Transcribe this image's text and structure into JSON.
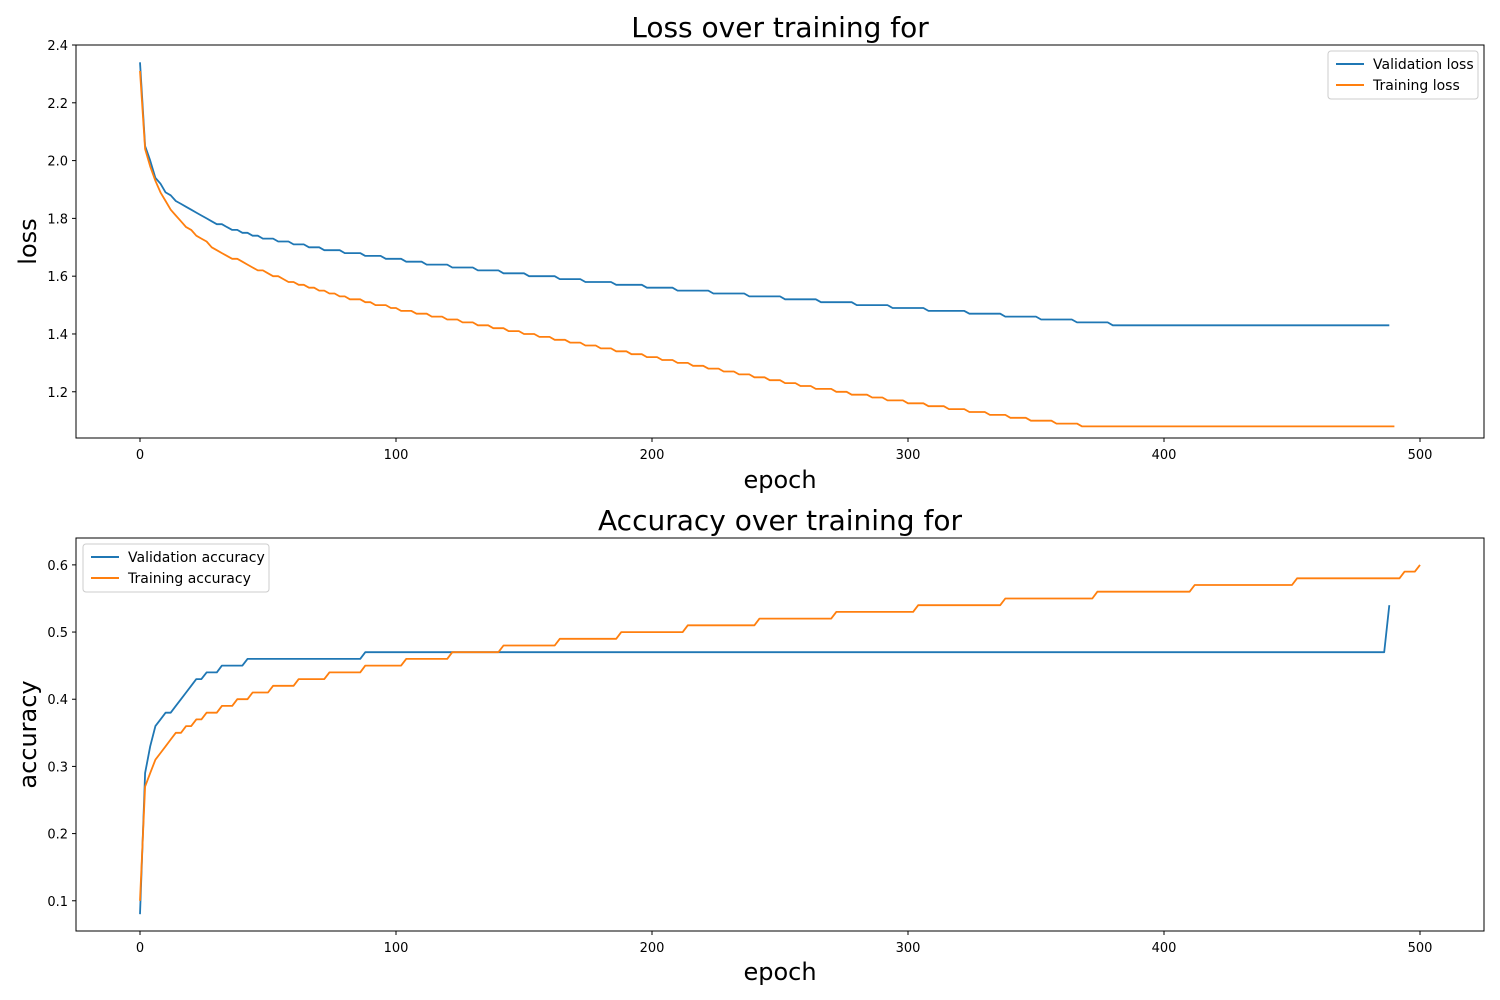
{
  "chart_data": [
    {
      "type": "line",
      "title": "Loss over training for",
      "xlabel": "epoch",
      "ylabel": "loss",
      "xlim": [
        -25,
        525
      ],
      "ylim": [
        1.04,
        2.4
      ],
      "xticks": [
        0,
        100,
        200,
        300,
        400,
        500
      ],
      "yticks": [
        1.2,
        1.4,
        1.6,
        1.8,
        2.0,
        2.2,
        2.4
      ],
      "ytick_labels": [
        "1.2",
        "1.4",
        "1.6",
        "1.8",
        "2.0",
        "2.2",
        "2.4"
      ],
      "legend": "top-right",
      "grid": false,
      "x_start": 0,
      "x_step": 2,
      "series": [
        {
          "name": "Validation loss",
          "color": "#1f77b4",
          "values": [
            2.34,
            2.05,
            2.0,
            1.94,
            1.92,
            1.89,
            1.88,
            1.86,
            1.85,
            1.84,
            1.83,
            1.82,
            1.81,
            1.8,
            1.79,
            1.78,
            1.78,
            1.77,
            1.76,
            1.76,
            1.75,
            1.75,
            1.74,
            1.74,
            1.73,
            1.73,
            1.73,
            1.72,
            1.72,
            1.72,
            1.71,
            1.71,
            1.71,
            1.7,
            1.7,
            1.7,
            1.69,
            1.69,
            1.69,
            1.69,
            1.68,
            1.68,
            1.68,
            1.68,
            1.67,
            1.67,
            1.67,
            1.67,
            1.66,
            1.66,
            1.66,
            1.66,
            1.65,
            1.65,
            1.65,
            1.65,
            1.64,
            1.64,
            1.64,
            1.64,
            1.64,
            1.63,
            1.63,
            1.63,
            1.63,
            1.63,
            1.62,
            1.62,
            1.62,
            1.62,
            1.62,
            1.61,
            1.61,
            1.61,
            1.61,
            1.61,
            1.6,
            1.6,
            1.6,
            1.6,
            1.6,
            1.6,
            1.59,
            1.59,
            1.59,
            1.59,
            1.59,
            1.58,
            1.58,
            1.58,
            1.58,
            1.58,
            1.58,
            1.57,
            1.57,
            1.57,
            1.57,
            1.57,
            1.57,
            1.56,
            1.56,
            1.56,
            1.56,
            1.56,
            1.56,
            1.55,
            1.55,
            1.55,
            1.55,
            1.55,
            1.55,
            1.55,
            1.54,
            1.54,
            1.54,
            1.54,
            1.54,
            1.54,
            1.54,
            1.53,
            1.53,
            1.53,
            1.53,
            1.53,
            1.53,
            1.53,
            1.52,
            1.52,
            1.52,
            1.52,
            1.52,
            1.52,
            1.52,
            1.51,
            1.51,
            1.51,
            1.51,
            1.51,
            1.51,
            1.51,
            1.5,
            1.5,
            1.5,
            1.5,
            1.5,
            1.5,
            1.5,
            1.49,
            1.49,
            1.49,
            1.49,
            1.49,
            1.49,
            1.49,
            1.48,
            1.48,
            1.48,
            1.48,
            1.48,
            1.48,
            1.48,
            1.48,
            1.47,
            1.47,
            1.47,
            1.47,
            1.47,
            1.47,
            1.47,
            1.46,
            1.46,
            1.46,
            1.46,
            1.46,
            1.46,
            1.46,
            1.45,
            1.45,
            1.45,
            1.45,
            1.45,
            1.45,
            1.45,
            1.44,
            1.44,
            1.44,
            1.44,
            1.44,
            1.44,
            1.44,
            1.43,
            1.43,
            1.43,
            1.43,
            1.43,
            1.43,
            1.43,
            1.43,
            1.43,
            1.43,
            1.43,
            1.43,
            1.43,
            1.43,
            1.43,
            1.43,
            1.43,
            1.43,
            1.43,
            1.43,
            1.43,
            1.43,
            1.43,
            1.43,
            1.43,
            1.43,
            1.43,
            1.43,
            1.43,
            1.43,
            1.43,
            1.43,
            1.43,
            1.43,
            1.43,
            1.43,
            1.43,
            1.43,
            1.43,
            1.43,
            1.43,
            1.43,
            1.43,
            1.43,
            1.43,
            1.43,
            1.43,
            1.43,
            1.43,
            1.43,
            1.43,
            1.43,
            1.43,
            1.43,
            1.43
          ]
        },
        {
          "name": "Training loss",
          "color": "#ff7f0e",
          "values": [
            2.31,
            2.04,
            1.98,
            1.93,
            1.89,
            1.86,
            1.83,
            1.81,
            1.79,
            1.77,
            1.76,
            1.74,
            1.73,
            1.72,
            1.7,
            1.69,
            1.68,
            1.67,
            1.66,
            1.66,
            1.65,
            1.64,
            1.63,
            1.62,
            1.62,
            1.61,
            1.6,
            1.6,
            1.59,
            1.58,
            1.58,
            1.57,
            1.57,
            1.56,
            1.56,
            1.55,
            1.55,
            1.54,
            1.54,
            1.53,
            1.53,
            1.52,
            1.52,
            1.52,
            1.51,
            1.51,
            1.5,
            1.5,
            1.5,
            1.49,
            1.49,
            1.48,
            1.48,
            1.48,
            1.47,
            1.47,
            1.47,
            1.46,
            1.46,
            1.46,
            1.45,
            1.45,
            1.45,
            1.44,
            1.44,
            1.44,
            1.43,
            1.43,
            1.43,
            1.42,
            1.42,
            1.42,
            1.41,
            1.41,
            1.41,
            1.4,
            1.4,
            1.4,
            1.39,
            1.39,
            1.39,
            1.38,
            1.38,
            1.38,
            1.37,
            1.37,
            1.37,
            1.36,
            1.36,
            1.36,
            1.35,
            1.35,
            1.35,
            1.34,
            1.34,
            1.34,
            1.33,
            1.33,
            1.33,
            1.32,
            1.32,
            1.32,
            1.31,
            1.31,
            1.31,
            1.3,
            1.3,
            1.3,
            1.29,
            1.29,
            1.29,
            1.28,
            1.28,
            1.28,
            1.27,
            1.27,
            1.27,
            1.26,
            1.26,
            1.26,
            1.25,
            1.25,
            1.25,
            1.24,
            1.24,
            1.24,
            1.23,
            1.23,
            1.23,
            1.22,
            1.22,
            1.22,
            1.21,
            1.21,
            1.21,
            1.21,
            1.2,
            1.2,
            1.2,
            1.19,
            1.19,
            1.19,
            1.19,
            1.18,
            1.18,
            1.18,
            1.17,
            1.17,
            1.17,
            1.17,
            1.16,
            1.16,
            1.16,
            1.16,
            1.15,
            1.15,
            1.15,
            1.15,
            1.14,
            1.14,
            1.14,
            1.14,
            1.13,
            1.13,
            1.13,
            1.13,
            1.12,
            1.12,
            1.12,
            1.12,
            1.11,
            1.11,
            1.11,
            1.11,
            1.1,
            1.1,
            1.1,
            1.1,
            1.1,
            1.09,
            1.09,
            1.09,
            1.09,
            1.09,
            1.08,
            1.08,
            1.08,
            1.08,
            1.08,
            1.08,
            1.08,
            1.08,
            1.08,
            1.08,
            1.08,
            1.08,
            1.08,
            1.08,
            1.08,
            1.08,
            1.08,
            1.08,
            1.08,
            1.08,
            1.08,
            1.08,
            1.08,
            1.08,
            1.08,
            1.08,
            1.08,
            1.08,
            1.08,
            1.08,
            1.08,
            1.08,
            1.08,
            1.08,
            1.08,
            1.08,
            1.08,
            1.08,
            1.08,
            1.08,
            1.08,
            1.08,
            1.08,
            1.08,
            1.08,
            1.08,
            1.08,
            1.08,
            1.08,
            1.08,
            1.08,
            1.08,
            1.08,
            1.08,
            1.08,
            1.08,
            1.08,
            1.08,
            1.08,
            1.08,
            1.08,
            1.08
          ]
        }
      ]
    },
    {
      "type": "line",
      "title": "Accuracy over training for",
      "xlabel": "epoch",
      "ylabel": "accuracy",
      "xlim": [
        -25,
        525
      ],
      "ylim": [
        0.055,
        0.64
      ],
      "xticks": [
        0,
        100,
        200,
        300,
        400,
        500
      ],
      "yticks": [
        0.1,
        0.2,
        0.3,
        0.4,
        0.5,
        0.6
      ],
      "ytick_labels": [
        "0.1",
        "0.2",
        "0.3",
        "0.4",
        "0.5",
        "0.6"
      ],
      "legend": "top-left",
      "grid": false,
      "x_start": 0,
      "x_step": 2,
      "series": [
        {
          "name": "Validation accuracy",
          "color": "#1f77b4",
          "values": [
            0.08,
            0.29,
            0.33,
            0.36,
            0.37,
            0.38,
            0.38,
            0.39,
            0.4,
            0.41,
            0.42,
            0.43,
            0.43,
            0.44,
            0.44,
            0.44,
            0.45,
            0.45,
            0.45,
            0.45,
            0.45,
            0.46,
            0.46,
            0.46,
            0.46,
            0.46,
            0.46,
            0.46,
            0.46,
            0.46,
            0.46,
            0.46,
            0.46,
            0.46,
            0.46,
            0.46,
            0.46,
            0.46,
            0.46,
            0.46,
            0.46,
            0.46,
            0.46,
            0.46,
            0.47,
            0.47,
            0.47,
            0.47,
            0.47,
            0.47,
            0.47,
            0.47,
            0.47,
            0.47,
            0.47,
            0.47,
            0.47,
            0.47,
            0.47,
            0.47,
            0.47,
            0.47,
            0.47,
            0.47,
            0.47,
            0.47,
            0.47,
            0.47,
            0.47,
            0.47,
            0.47,
            0.47,
            0.47,
            0.47,
            0.47,
            0.47,
            0.47,
            0.47,
            0.47,
            0.47,
            0.47,
            0.47,
            0.47,
            0.47,
            0.47,
            0.47,
            0.47,
            0.47,
            0.47,
            0.47,
            0.47,
            0.47,
            0.47,
            0.47,
            0.47,
            0.47,
            0.47,
            0.47,
            0.47,
            0.47,
            0.47,
            0.47,
            0.47,
            0.47,
            0.47,
            0.47,
            0.47,
            0.47,
            0.47,
            0.47,
            0.47,
            0.47,
            0.47,
            0.47,
            0.47,
            0.47,
            0.47,
            0.47,
            0.47,
            0.47,
            0.47,
            0.47,
            0.47,
            0.47,
            0.47,
            0.47,
            0.47,
            0.47,
            0.47,
            0.47,
            0.47,
            0.47,
            0.47,
            0.47,
            0.47,
            0.47,
            0.47,
            0.47,
            0.47,
            0.47,
            0.47,
            0.47,
            0.47,
            0.47,
            0.47,
            0.47,
            0.47,
            0.47,
            0.47,
            0.47,
            0.47,
            0.47,
            0.47,
            0.47,
            0.47,
            0.47,
            0.47,
            0.47,
            0.47,
            0.47,
            0.47,
            0.47,
            0.47,
            0.47,
            0.47,
            0.47,
            0.47,
            0.47,
            0.47,
            0.47,
            0.47,
            0.47,
            0.47,
            0.47,
            0.47,
            0.47,
            0.47,
            0.47,
            0.47,
            0.47,
            0.47,
            0.47,
            0.47,
            0.47,
            0.47,
            0.47,
            0.47,
            0.47,
            0.47,
            0.47,
            0.47,
            0.47,
            0.47,
            0.47,
            0.47,
            0.47,
            0.47,
            0.47,
            0.47,
            0.47,
            0.47,
            0.47,
            0.47,
            0.47,
            0.47,
            0.47,
            0.47,
            0.47,
            0.47,
            0.47,
            0.47,
            0.47,
            0.47,
            0.47,
            0.47,
            0.47,
            0.47,
            0.47,
            0.47,
            0.47,
            0.47,
            0.47,
            0.47,
            0.47,
            0.47,
            0.47,
            0.47,
            0.47,
            0.47,
            0.47,
            0.47,
            0.47,
            0.47,
            0.47,
            0.47,
            0.47,
            0.47,
            0.47,
            0.47,
            0.47,
            0.47,
            0.47,
            0.47,
            0.47,
            0.54
          ]
        },
        {
          "name": "Training accuracy",
          "color": "#ff7f0e",
          "values": [
            0.1,
            0.27,
            0.29,
            0.31,
            0.32,
            0.33,
            0.34,
            0.35,
            0.35,
            0.36,
            0.36,
            0.37,
            0.37,
            0.38,
            0.38,
            0.38,
            0.39,
            0.39,
            0.39,
            0.4,
            0.4,
            0.4,
            0.41,
            0.41,
            0.41,
            0.41,
            0.42,
            0.42,
            0.42,
            0.42,
            0.42,
            0.43,
            0.43,
            0.43,
            0.43,
            0.43,
            0.43,
            0.44,
            0.44,
            0.44,
            0.44,
            0.44,
            0.44,
            0.44,
            0.45,
            0.45,
            0.45,
            0.45,
            0.45,
            0.45,
            0.45,
            0.45,
            0.46,
            0.46,
            0.46,
            0.46,
            0.46,
            0.46,
            0.46,
            0.46,
            0.46,
            0.47,
            0.47,
            0.47,
            0.47,
            0.47,
            0.47,
            0.47,
            0.47,
            0.47,
            0.47,
            0.48,
            0.48,
            0.48,
            0.48,
            0.48,
            0.48,
            0.48,
            0.48,
            0.48,
            0.48,
            0.48,
            0.49,
            0.49,
            0.49,
            0.49,
            0.49,
            0.49,
            0.49,
            0.49,
            0.49,
            0.49,
            0.49,
            0.49,
            0.5,
            0.5,
            0.5,
            0.5,
            0.5,
            0.5,
            0.5,
            0.5,
            0.5,
            0.5,
            0.5,
            0.5,
            0.5,
            0.51,
            0.51,
            0.51,
            0.51,
            0.51,
            0.51,
            0.51,
            0.51,
            0.51,
            0.51,
            0.51,
            0.51,
            0.51,
            0.51,
            0.52,
            0.52,
            0.52,
            0.52,
            0.52,
            0.52,
            0.52,
            0.52,
            0.52,
            0.52,
            0.52,
            0.52,
            0.52,
            0.52,
            0.52,
            0.53,
            0.53,
            0.53,
            0.53,
            0.53,
            0.53,
            0.53,
            0.53,
            0.53,
            0.53,
            0.53,
            0.53,
            0.53,
            0.53,
            0.53,
            0.53,
            0.54,
            0.54,
            0.54,
            0.54,
            0.54,
            0.54,
            0.54,
            0.54,
            0.54,
            0.54,
            0.54,
            0.54,
            0.54,
            0.54,
            0.54,
            0.54,
            0.54,
            0.55,
            0.55,
            0.55,
            0.55,
            0.55,
            0.55,
            0.55,
            0.55,
            0.55,
            0.55,
            0.55,
            0.55,
            0.55,
            0.55,
            0.55,
            0.55,
            0.55,
            0.55,
            0.56,
            0.56,
            0.56,
            0.56,
            0.56,
            0.56,
            0.56,
            0.56,
            0.56,
            0.56,
            0.56,
            0.56,
            0.56,
            0.56,
            0.56,
            0.56,
            0.56,
            0.56,
            0.56,
            0.57,
            0.57,
            0.57,
            0.57,
            0.57,
            0.57,
            0.57,
            0.57,
            0.57,
            0.57,
            0.57,
            0.57,
            0.57,
            0.57,
            0.57,
            0.57,
            0.57,
            0.57,
            0.57,
            0.57,
            0.58,
            0.58,
            0.58,
            0.58,
            0.58,
            0.58,
            0.58,
            0.58,
            0.58,
            0.58,
            0.58,
            0.58,
            0.58,
            0.58,
            0.58,
            0.58,
            0.58,
            0.58,
            0.58,
            0.58,
            0.58,
            0.59,
            0.59,
            0.59,
            0.6
          ]
        }
      ]
    }
  ]
}
